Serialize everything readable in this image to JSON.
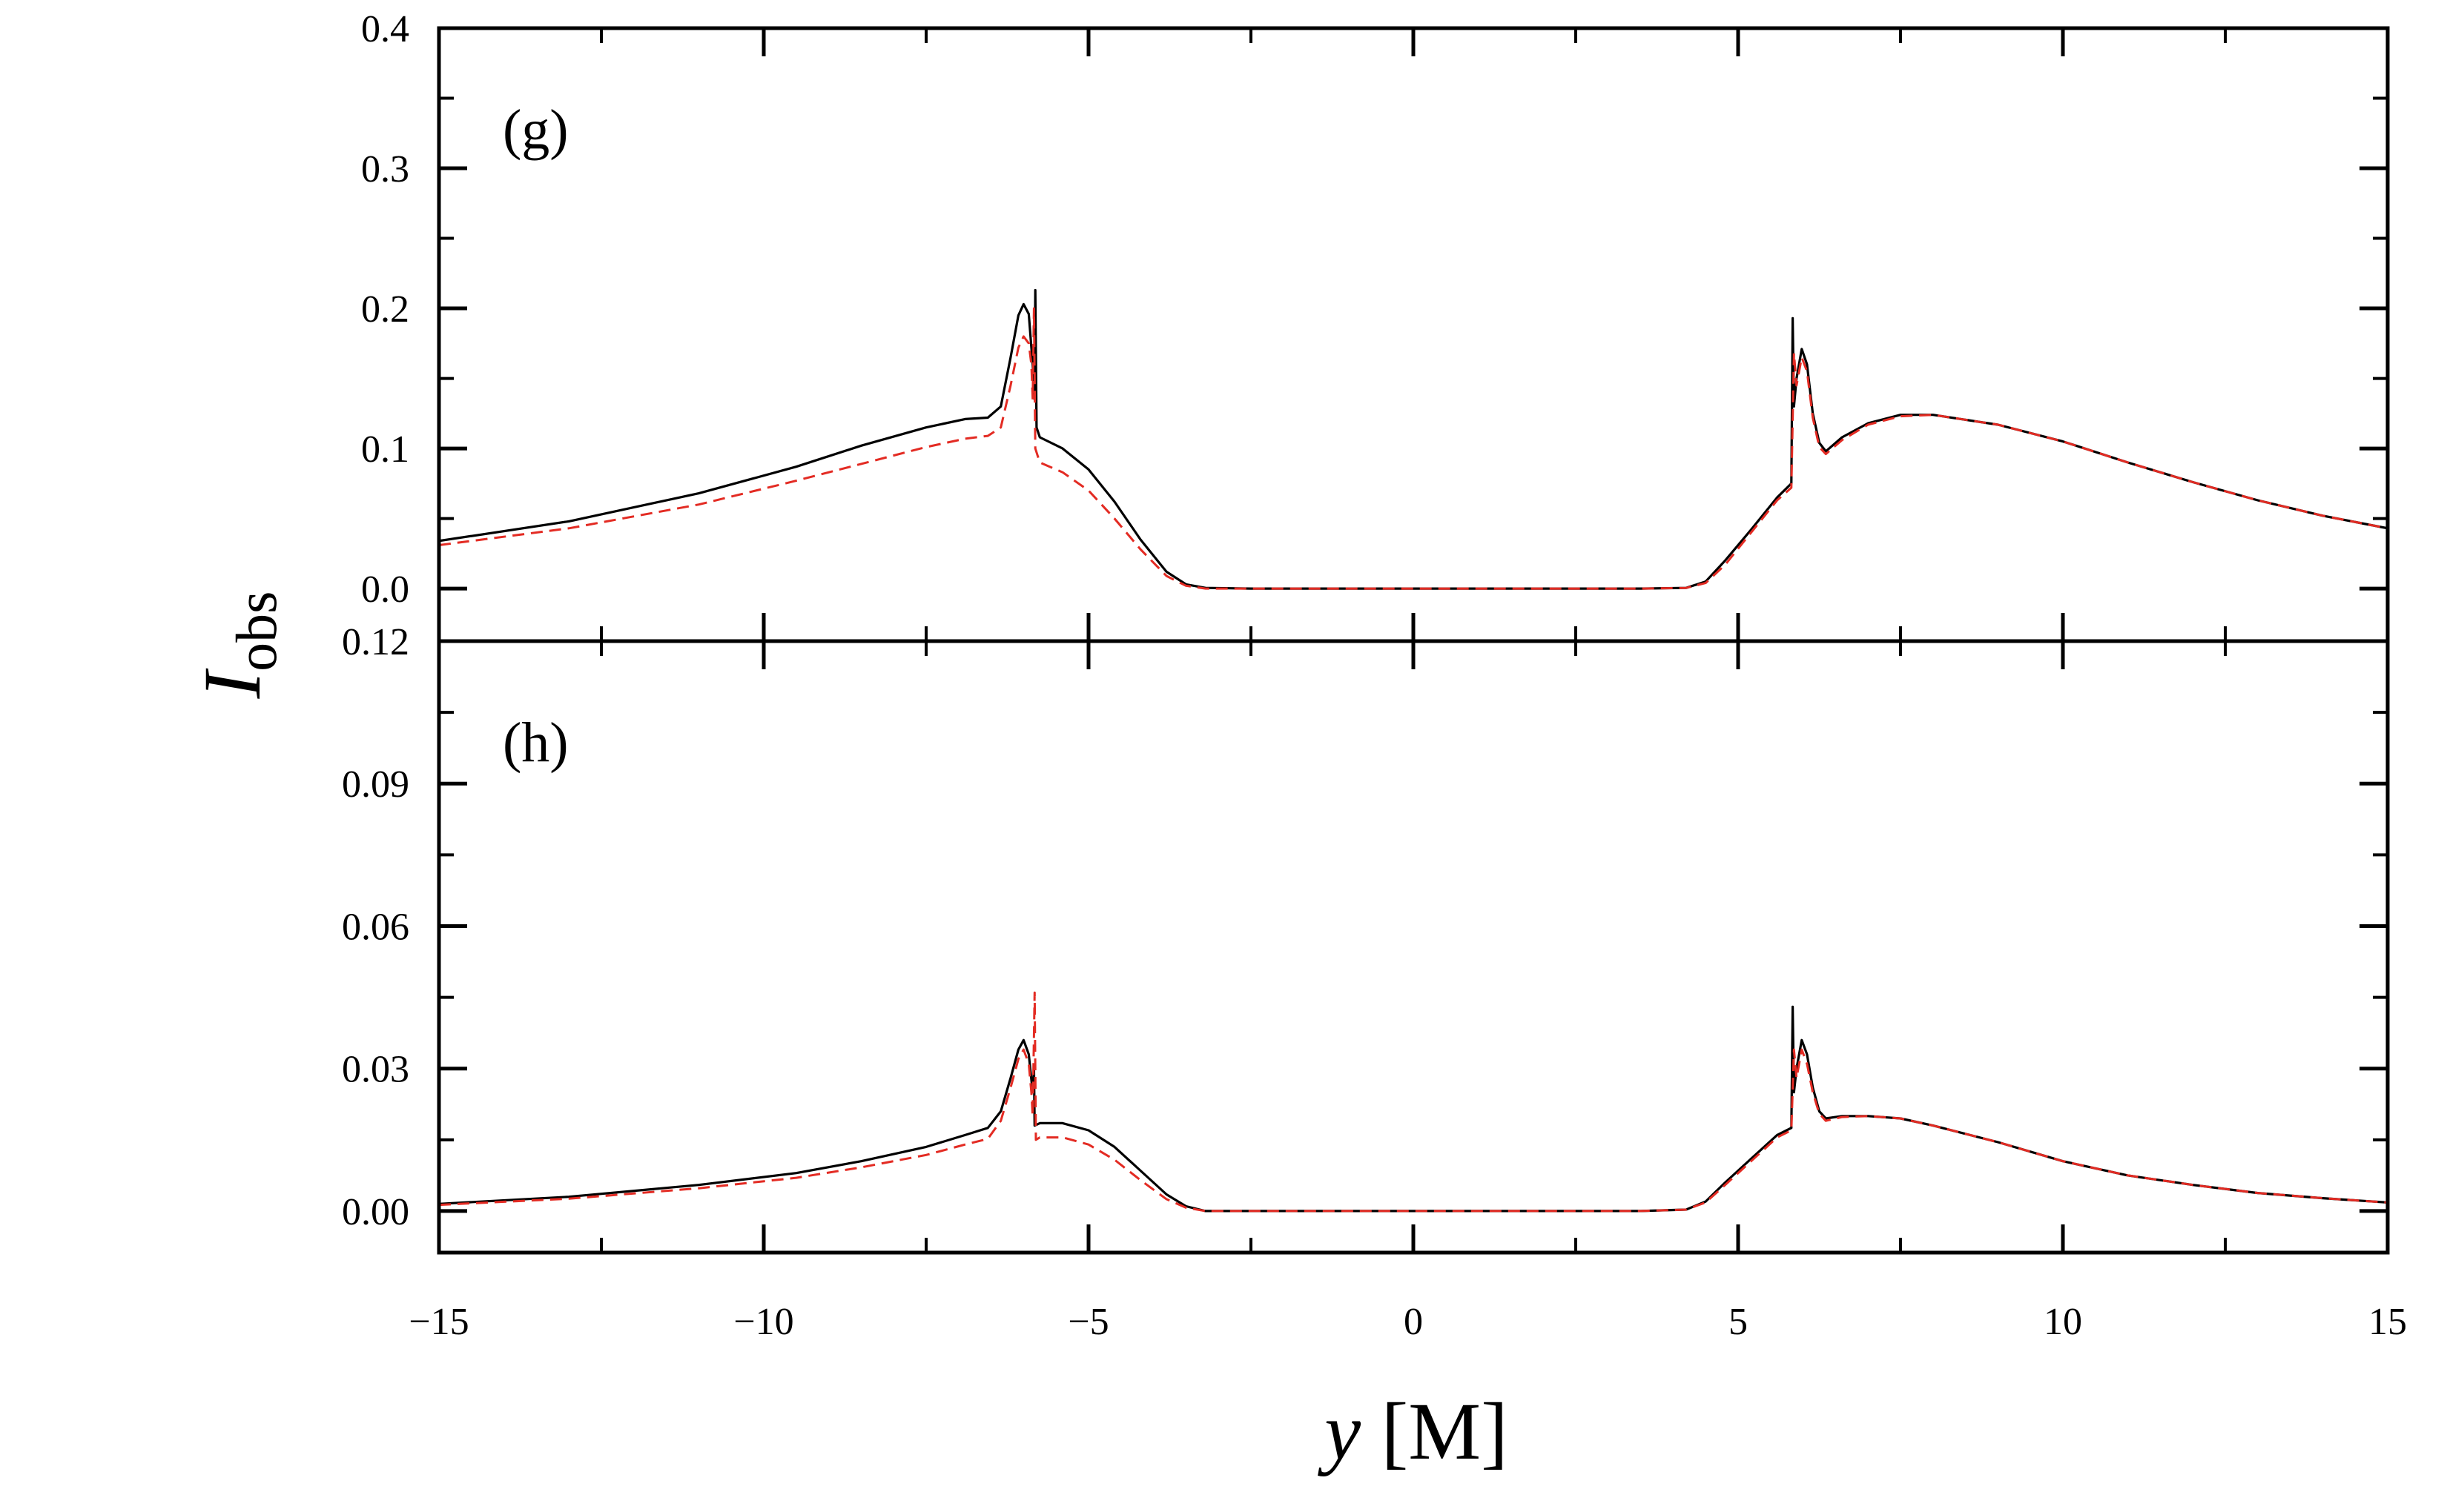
{
  "chart_data": {
    "type": "line",
    "xlabel_var": "y",
    "xlabel_unit": "[M]",
    "ylabel_var": "I",
    "ylabel_sub": "obs",
    "xlim": [
      -15,
      15
    ],
    "x_ticks": [
      -15,
      -10,
      -5,
      0,
      5,
      10,
      15
    ],
    "x_tick_labels": [
      "−15",
      "−10",
      "−5",
      "0",
      "5",
      "10",
      "15"
    ],
    "colors": {
      "solid": "#000000",
      "dashed": "#e32b23"
    },
    "panels": [
      {
        "label": "(g)",
        "ylim": [
          -0.0375,
          0.4
        ],
        "y_ticks": [
          0.0,
          0.1,
          0.2,
          0.3,
          0.4
        ],
        "y_tick_labels": [
          "0.0",
          "0.1",
          "0.2",
          "0.3",
          "0.4"
        ],
        "series": [
          {
            "name": "solid",
            "style": "solid",
            "points": [
              [
                -15,
                0.034
              ],
              [
                -13,
                0.048
              ],
              [
                -11,
                0.068
              ],
              [
                -9.5,
                0.087
              ],
              [
                -8.5,
                0.102
              ],
              [
                -7.5,
                0.115
              ],
              [
                -6.9,
                0.121
              ],
              [
                -6.55,
                0.122
              ],
              [
                -6.35,
                0.13
              ],
              [
                -6.2,
                0.165
              ],
              [
                -6.08,
                0.195
              ],
              [
                -6.0,
                0.203
              ],
              [
                -5.92,
                0.196
              ],
              [
                -5.86,
                0.16
              ],
              [
                -5.83,
                0.135
              ],
              [
                -5.82,
                0.213
              ],
              [
                -5.8,
                0.115
              ],
              [
                -5.75,
                0.108
              ],
              [
                -5.4,
                0.1
              ],
              [
                -5.0,
                0.085
              ],
              [
                -4.6,
                0.062
              ],
              [
                -4.2,
                0.035
              ],
              [
                -3.8,
                0.012
              ],
              [
                -3.5,
                0.003
              ],
              [
                -3.2,
                0.0005
              ],
              [
                -2.5,
                0
              ],
              [
                3.5,
                0
              ],
              [
                4.2,
                0.0005
              ],
              [
                4.5,
                0.005
              ],
              [
                4.8,
                0.02
              ],
              [
                5.2,
                0.042
              ],
              [
                5.6,
                0.065
              ],
              [
                5.82,
                0.075
              ],
              [
                5.84,
                0.193
              ],
              [
                5.86,
                0.13
              ],
              [
                5.9,
                0.15
              ],
              [
                5.98,
                0.171
              ],
              [
                6.06,
                0.16
              ],
              [
                6.15,
                0.125
              ],
              [
                6.25,
                0.104
              ],
              [
                6.35,
                0.098
              ],
              [
                6.6,
                0.108
              ],
              [
                7.0,
                0.118
              ],
              [
                7.5,
                0.124
              ],
              [
                8.0,
                0.124
              ],
              [
                9.0,
                0.117
              ],
              [
                10.0,
                0.105
              ],
              [
                11.0,
                0.09
              ],
              [
                12.0,
                0.076
              ],
              [
                13.0,
                0.063
              ],
              [
                14.0,
                0.052
              ],
              [
                15,
                0.043
              ]
            ]
          },
          {
            "name": "dashed",
            "style": "dashed",
            "points": [
              [
                -15,
                0.031
              ],
              [
                -13,
                0.043
              ],
              [
                -11,
                0.06
              ],
              [
                -9.5,
                0.077
              ],
              [
                -8.5,
                0.089
              ],
              [
                -7.5,
                0.101
              ],
              [
                -6.9,
                0.107
              ],
              [
                -6.55,
                0.109
              ],
              [
                -6.35,
                0.115
              ],
              [
                -6.2,
                0.145
              ],
              [
                -6.08,
                0.172
              ],
              [
                -6.0,
                0.18
              ],
              [
                -5.92,
                0.175
              ],
              [
                -5.88,
                0.16
              ],
              [
                -5.86,
                0.135
              ],
              [
                -5.84,
                0.2
              ],
              [
                -5.82,
                0.1
              ],
              [
                -5.75,
                0.09
              ],
              [
                -5.4,
                0.083
              ],
              [
                -5.0,
                0.07
              ],
              [
                -4.6,
                0.05
              ],
              [
                -4.2,
                0.028
              ],
              [
                -3.8,
                0.009
              ],
              [
                -3.5,
                0.002
              ],
              [
                -3.2,
                0
              ],
              [
                3.5,
                0
              ],
              [
                4.2,
                0.0005
              ],
              [
                4.5,
                0.004
              ],
              [
                4.8,
                0.017
              ],
              [
                5.2,
                0.04
              ],
              [
                5.6,
                0.063
              ],
              [
                5.82,
                0.072
              ],
              [
                5.86,
                0.168
              ],
              [
                5.9,
                0.145
              ],
              [
                5.98,
                0.165
              ],
              [
                6.06,
                0.155
              ],
              [
                6.15,
                0.122
              ],
              [
                6.25,
                0.101
              ],
              [
                6.35,
                0.096
              ],
              [
                6.6,
                0.106
              ],
              [
                7.0,
                0.117
              ],
              [
                7.5,
                0.123
              ],
              [
                8.0,
                0.124
              ],
              [
                9.0,
                0.117
              ],
              [
                10.0,
                0.105
              ],
              [
                11.0,
                0.09
              ],
              [
                12.0,
                0.076
              ],
              [
                13.0,
                0.063
              ],
              [
                14.0,
                0.052
              ],
              [
                15,
                0.043
              ]
            ]
          }
        ]
      },
      {
        "label": "(h)",
        "ylim": [
          -0.00875,
          0.12
        ],
        "y_ticks": [
          0.0,
          0.03,
          0.06,
          0.09,
          0.12
        ],
        "y_tick_labels": [
          "0.00",
          "0.03",
          "0.06",
          "0.09",
          "0.12"
        ],
        "series": [
          {
            "name": "solid",
            "style": "solid",
            "points": [
              [
                -15,
                0.0015
              ],
              [
                -13,
                0.003
              ],
              [
                -11,
                0.0055
              ],
              [
                -9.5,
                0.008
              ],
              [
                -8.5,
                0.0105
              ],
              [
                -7.5,
                0.0135
              ],
              [
                -6.9,
                0.016
              ],
              [
                -6.55,
                0.0175
              ],
              [
                -6.35,
                0.021
              ],
              [
                -6.2,
                0.028
              ],
              [
                -6.08,
                0.034
              ],
              [
                -6.0,
                0.036
              ],
              [
                -5.92,
                0.033
              ],
              [
                -5.86,
                0.025
              ],
              [
                -5.84,
                0.03
              ],
              [
                -5.83,
                0.018
              ],
              [
                -5.75,
                0.0185
              ],
              [
                -5.4,
                0.0185
              ],
              [
                -5.0,
                0.017
              ],
              [
                -4.6,
                0.0135
              ],
              [
                -4.2,
                0.0085
              ],
              [
                -3.8,
                0.0035
              ],
              [
                -3.5,
                0.001
              ],
              [
                -3.2,
                0
              ],
              [
                3.5,
                0
              ],
              [
                4.2,
                0.0003
              ],
              [
                4.5,
                0.002
              ],
              [
                4.8,
                0.006
              ],
              [
                5.2,
                0.011
              ],
              [
                5.6,
                0.016
              ],
              [
                5.82,
                0.0175
              ],
              [
                5.84,
                0.043
              ],
              [
                5.86,
                0.025
              ],
              [
                5.9,
                0.03
              ],
              [
                5.98,
                0.036
              ],
              [
                6.06,
                0.033
              ],
              [
                6.15,
                0.026
              ],
              [
                6.25,
                0.021
              ],
              [
                6.35,
                0.0195
              ],
              [
                6.6,
                0.02
              ],
              [
                7.0,
                0.02
              ],
              [
                7.5,
                0.0195
              ],
              [
                8.0,
                0.018
              ],
              [
                9.0,
                0.0145
              ],
              [
                10.0,
                0.0105
              ],
              [
                11.0,
                0.0075
              ],
              [
                12.0,
                0.0055
              ],
              [
                13.0,
                0.0038
              ],
              [
                14.0,
                0.0027
              ],
              [
                15,
                0.0018
              ]
            ]
          },
          {
            "name": "dashed",
            "style": "dashed",
            "points": [
              [
                -15,
                0.0013
              ],
              [
                -13,
                0.0026
              ],
              [
                -11,
                0.0048
              ],
              [
                -9.5,
                0.007
              ],
              [
                -8.5,
                0.0092
              ],
              [
                -7.5,
                0.0118
              ],
              [
                -6.9,
                0.014
              ],
              [
                -6.55,
                0.0152
              ],
              [
                -6.35,
                0.019
              ],
              [
                -6.2,
                0.026
              ],
              [
                -6.08,
                0.032
              ],
              [
                -6.0,
                0.034
              ],
              [
                -5.92,
                0.031
              ],
              [
                -5.88,
                0.025
              ],
              [
                -5.86,
                0.02
              ],
              [
                -5.83,
                0.046
              ],
              [
                -5.81,
                0.015
              ],
              [
                -5.75,
                0.0155
              ],
              [
                -5.4,
                0.0155
              ],
              [
                -5.0,
                0.014
              ],
              [
                -4.6,
                0.0108
              ],
              [
                -4.2,
                0.0065
              ],
              [
                -3.8,
                0.0025
              ],
              [
                -3.5,
                0.0007
              ],
              [
                -3.2,
                0
              ],
              [
                3.5,
                0
              ],
              [
                4.2,
                0.0003
              ],
              [
                4.5,
                0.0018
              ],
              [
                4.8,
                0.0055
              ],
              [
                5.2,
                0.0105
              ],
              [
                5.6,
                0.0155
              ],
              [
                5.82,
                0.017
              ],
              [
                5.86,
                0.034
              ],
              [
                5.9,
                0.028
              ],
              [
                5.98,
                0.034
              ],
              [
                6.06,
                0.031
              ],
              [
                6.15,
                0.025
              ],
              [
                6.25,
                0.0205
              ],
              [
                6.35,
                0.019
              ],
              [
                6.6,
                0.0198
              ],
              [
                7.0,
                0.02
              ],
              [
                7.5,
                0.0195
              ],
              [
                8.0,
                0.018
              ],
              [
                9.0,
                0.0145
              ],
              [
                10.0,
                0.0105
              ],
              [
                11.0,
                0.0075
              ],
              [
                12.0,
                0.0055
              ],
              [
                13.0,
                0.0038
              ],
              [
                14.0,
                0.0027
              ],
              [
                15,
                0.0018
              ]
            ]
          }
        ]
      }
    ]
  }
}
